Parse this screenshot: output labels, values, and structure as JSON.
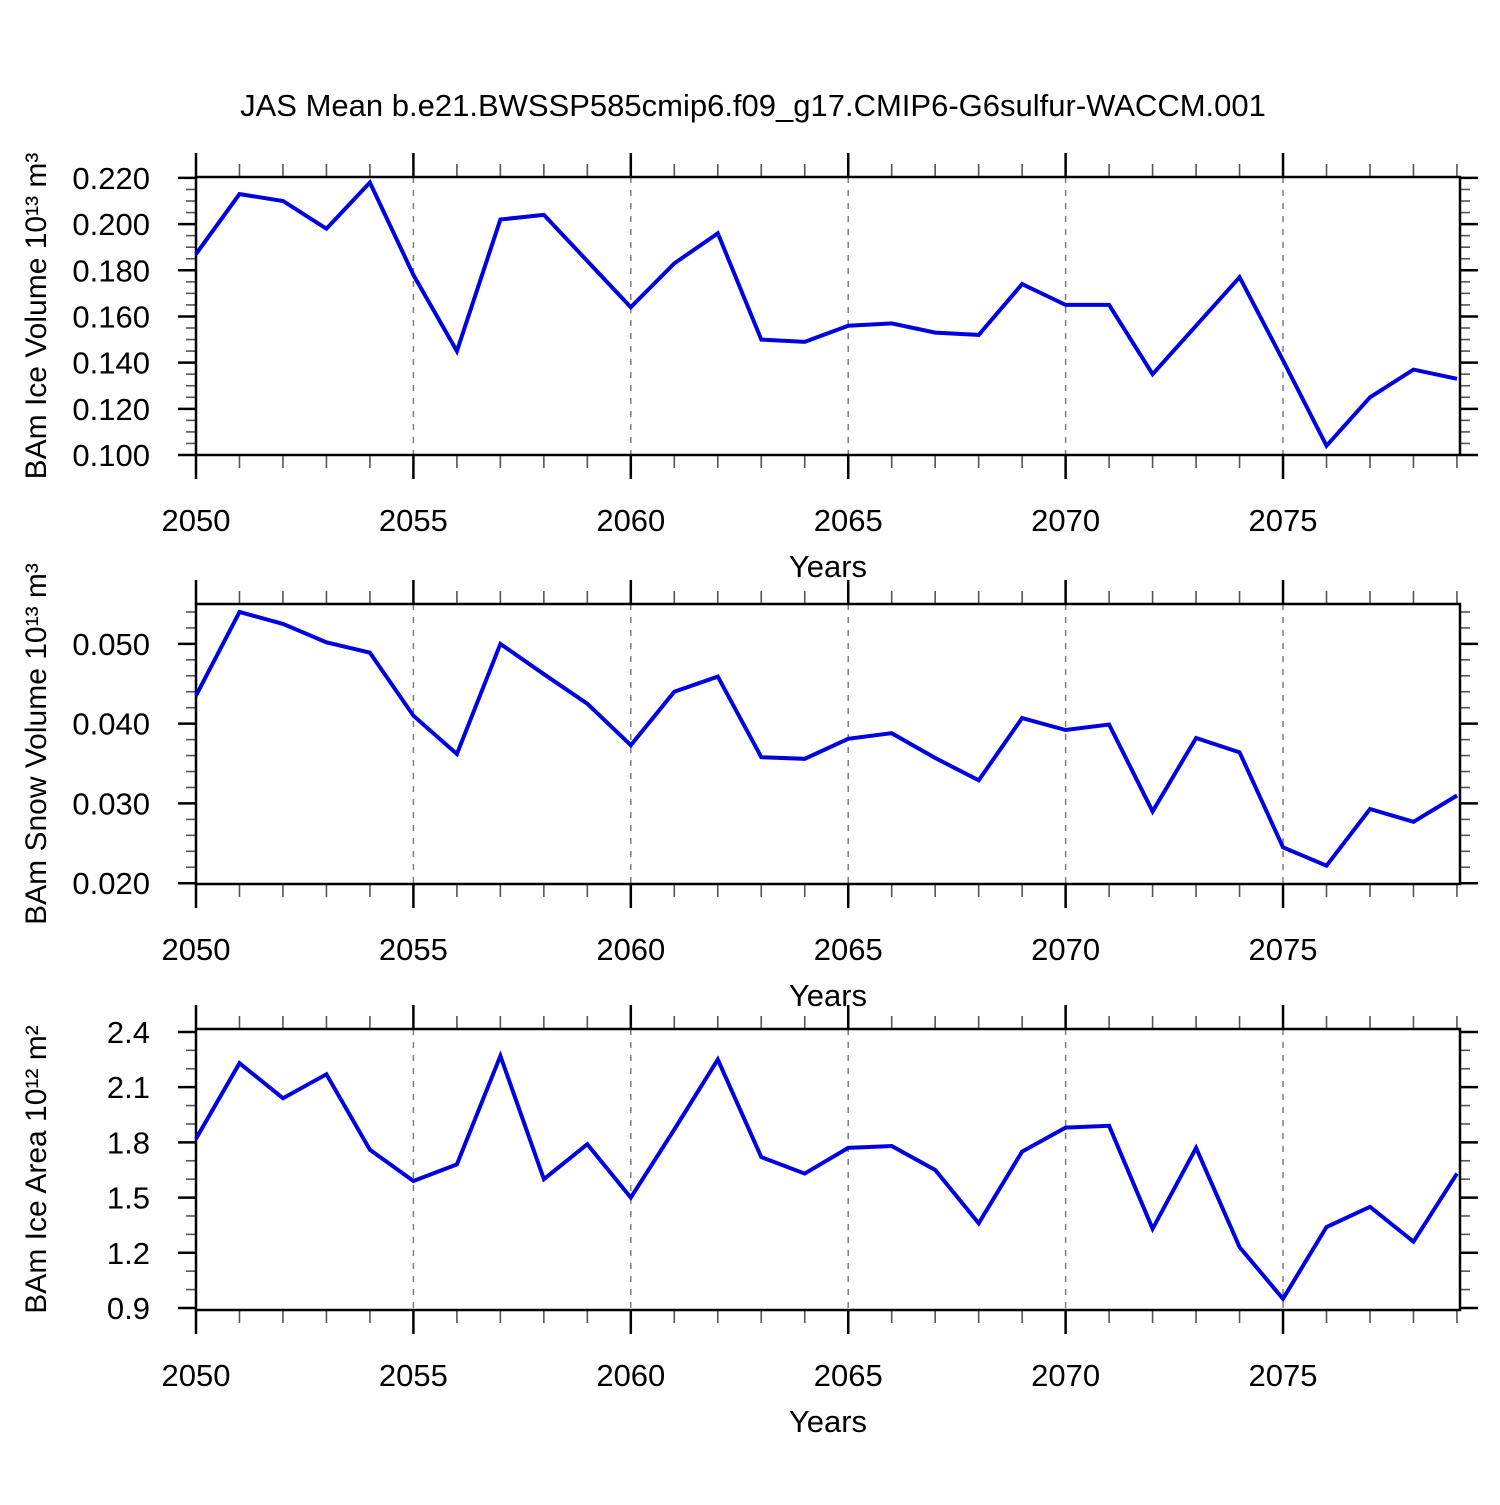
{
  "title": "JAS Mean b.e21.BWSSP585cmip6.f09_g17.CMIP6-G6sulfur-WACCM.001",
  "colors": {
    "line": "#0000e0",
    "grid": "#7d7d7d",
    "axis": "#000000",
    "minor_tick": "#555555",
    "background": "#ffffff",
    "text": "#000000"
  },
  "chart_data": [
    {
      "type": "line",
      "name": "ice-volume",
      "ylabel": "BAm Ice Volume 10¹³ m³",
      "xlabel": "Years",
      "x": [
        2050,
        2051,
        2052,
        2053,
        2054,
        2055,
        2056,
        2057,
        2058,
        2059,
        2060,
        2061,
        2062,
        2063,
        2064,
        2065,
        2066,
        2067,
        2068,
        2069,
        2070,
        2071,
        2072,
        2073,
        2074,
        2075,
        2076,
        2077,
        2078,
        2079
      ],
      "values": [
        0.187,
        0.213,
        0.21,
        0.198,
        0.218,
        0.178,
        0.145,
        0.202,
        0.204,
        0.184,
        0.164,
        0.183,
        0.196,
        0.15,
        0.149,
        0.156,
        0.157,
        0.153,
        0.152,
        0.174,
        0.165,
        0.165,
        0.135,
        0.156,
        0.177,
        0.141,
        0.104,
        0.125,
        0.137,
        0.133
      ],
      "xlim": [
        2050,
        2079.07
      ],
      "ylim": [
        0.1,
        0.2204
      ],
      "xticks": [
        2050,
        2055,
        2060,
        2065,
        2070,
        2075
      ],
      "xtick_labels": [
        "2050",
        "2055",
        "2060",
        "2065",
        "2070",
        "2075"
      ],
      "xminor_step": 1,
      "yticks": [
        0.1,
        0.12,
        0.14,
        0.16,
        0.18,
        0.2,
        0.22
      ],
      "ytick_labels": [
        "0.100",
        "0.120",
        "0.140",
        "0.160",
        "0.180",
        "0.200",
        "0.220"
      ],
      "yminor_step": 0.005,
      "grid_x": [
        2055,
        2060,
        2065,
        2070,
        2075
      ],
      "grid_style": "dashed",
      "legend": null
    },
    {
      "type": "line",
      "name": "snow-volume",
      "ylabel": "BAm Snow Volume 10¹³ m³",
      "xlabel": "Years",
      "x": [
        2050,
        2051,
        2052,
        2053,
        2054,
        2055,
        2056,
        2057,
        2058,
        2059,
        2060,
        2061,
        2062,
        2063,
        2064,
        2065,
        2066,
        2067,
        2068,
        2069,
        2070,
        2071,
        2072,
        2073,
        2074,
        2075,
        2076,
        2077,
        2078,
        2079
      ],
      "values": [
        0.0435,
        0.054,
        0.0525,
        0.0502,
        0.0489,
        0.041,
        0.0362,
        0.05,
        0.0462,
        0.0425,
        0.0373,
        0.044,
        0.0459,
        0.0358,
        0.0356,
        0.0381,
        0.0388,
        0.0357,
        0.0329,
        0.0407,
        0.0392,
        0.0399,
        0.029,
        0.0382,
        0.0364,
        0.0245,
        0.0222,
        0.0293,
        0.0277,
        0.031
      ],
      "xlim": [
        2050,
        2079.07
      ],
      "ylim": [
        0.0199,
        0.055
      ],
      "xticks": [
        2050,
        2055,
        2060,
        2065,
        2070,
        2075
      ],
      "xtick_labels": [
        "2050",
        "2055",
        "2060",
        "2065",
        "2070",
        "2075"
      ],
      "xminor_step": 1,
      "yticks": [
        0.02,
        0.03,
        0.04,
        0.05
      ],
      "ytick_labels": [
        "0.020",
        "0.030",
        "0.040",
        "0.050"
      ],
      "yminor_step": 0.002,
      "grid_x": [
        2055,
        2060,
        2065,
        2070,
        2075
      ],
      "grid_style": "dashed",
      "legend": null
    },
    {
      "type": "line",
      "name": "ice-area",
      "ylabel": "BAm Ice Area 10¹² m²",
      "xlabel": "Years",
      "x": [
        2050,
        2051,
        2052,
        2053,
        2054,
        2055,
        2056,
        2057,
        2058,
        2059,
        2060,
        2061,
        2062,
        2063,
        2064,
        2065,
        2066,
        2067,
        2068,
        2069,
        2070,
        2071,
        2072,
        2073,
        2074,
        2075,
        2076,
        2077,
        2078,
        2079
      ],
      "values": [
        1.82,
        2.23,
        2.04,
        2.17,
        1.76,
        1.59,
        1.68,
        2.27,
        1.6,
        1.79,
        1.5,
        1.87,
        2.25,
        1.72,
        1.63,
        1.77,
        1.78,
        1.65,
        1.36,
        1.75,
        1.88,
        1.89,
        1.33,
        1.77,
        1.23,
        0.95,
        1.34,
        1.45,
        1.26,
        1.63
      ],
      "xlim": [
        2050,
        2079.07
      ],
      "ylim": [
        0.889,
        2.416
      ],
      "xticks": [
        2050,
        2055,
        2060,
        2065,
        2070,
        2075
      ],
      "xtick_labels": [
        "2050",
        "2055",
        "2060",
        "2065",
        "2070",
        "2075"
      ],
      "xminor_step": 1,
      "yticks": [
        0.9,
        1.2,
        1.5,
        1.8,
        2.1,
        2.4
      ],
      "ytick_labels": [
        "0.9",
        "1.2",
        "1.5",
        "1.8",
        "2.1",
        "2.4"
      ],
      "yminor_step": 0.1,
      "grid_x": [
        2055,
        2060,
        2065,
        2070,
        2075
      ],
      "grid_style": "dashed",
      "legend": null
    }
  ]
}
